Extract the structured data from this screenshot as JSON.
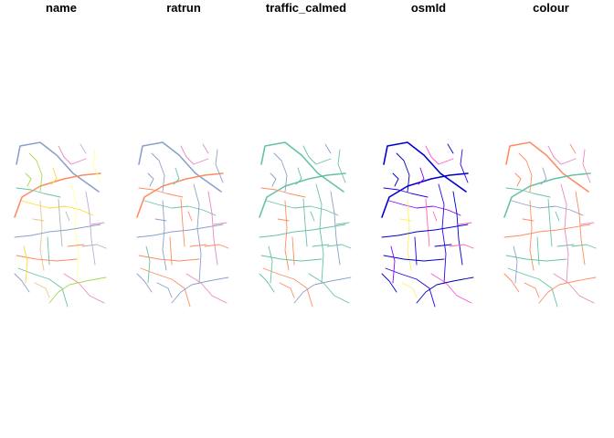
{
  "panels": [
    {
      "title": "name",
      "palette": [
        "#8da0cb",
        "#fc8d62",
        "#66c2a5",
        "#e78ac3",
        "#a6d854",
        "#ffd92f",
        "#e5c494",
        "#b3b3b3",
        "#ffff99",
        "#beaed4"
      ]
    },
    {
      "title": "ratrun",
      "palette": [
        "#8da0cb",
        "#fc8d62",
        "#fc8d62",
        "#e78ac3",
        "#8da0cb",
        "#66c2a5",
        "#8da0cb",
        "#fc8d62",
        "#8da0cb",
        "#e78ac3"
      ]
    },
    {
      "title": "traffic_calmed",
      "palette": [
        "#66c2a5",
        "#66c2a5",
        "#fc8d62",
        "#66c2a5",
        "#8da0cb",
        "#66c2a5",
        "#fc8d62",
        "#66c2a5",
        "#66c2a5",
        "#8da0cb"
      ]
    },
    {
      "title": "osmId",
      "palette": [
        "#0000cc",
        "#0000cc",
        "#2200dd",
        "#ff55cc",
        "#0000aa",
        "#8800ff",
        "#ffee66",
        "#ff66aa",
        "#3300ee",
        "#0000cc"
      ]
    },
    {
      "title": "colour",
      "palette": [
        "#fc8d62",
        "#66c2a5",
        "#66c2a5",
        "#e78ac3",
        "#fc8d62",
        "#8da0cb",
        "#fc8d62",
        "#66c2a5",
        "#e78ac3",
        "#fc8d62"
      ]
    }
  ]
}
